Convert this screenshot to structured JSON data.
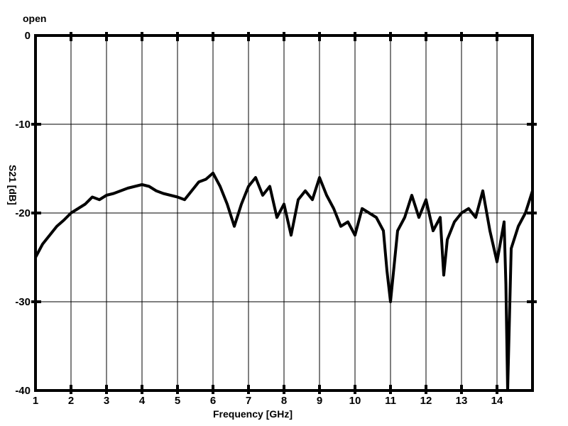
{
  "chart_data": {
    "type": "line",
    "title": "open",
    "xlabel": "Frequency [GHz]",
    "ylabel": "S21 [dB]",
    "xlim": [
      1,
      15
    ],
    "ylim": [
      -40,
      0
    ],
    "xticks": [
      1,
      2,
      3,
      4,
      5,
      6,
      7,
      8,
      9,
      10,
      11,
      12,
      13,
      14
    ],
    "yticks": [
      0,
      -10,
      -20,
      -30,
      -40
    ],
    "grid": true,
    "series": [
      {
        "x": [
          1.0,
          1.2,
          1.4,
          1.6,
          1.8,
          2.0,
          2.2,
          2.4,
          2.6,
          2.8,
          3.0,
          3.2,
          3.4,
          3.6,
          3.8,
          4.0,
          4.2,
          4.4,
          4.6,
          4.8,
          5.0,
          5.2,
          5.4,
          5.6,
          5.8,
          6.0,
          6.2,
          6.4,
          6.6,
          6.8,
          7.0,
          7.2,
          7.4,
          7.6,
          7.8,
          8.0,
          8.2,
          8.4,
          8.6,
          8.8,
          9.0,
          9.2,
          9.4,
          9.6,
          9.8,
          10.0,
          10.2,
          10.4,
          10.6,
          10.8,
          10.9,
          11.0,
          11.2,
          11.4,
          11.6,
          11.8,
          12.0,
          12.2,
          12.4,
          12.5,
          12.6,
          12.8,
          13.0,
          13.2,
          13.4,
          13.6,
          13.8,
          14.0,
          14.2,
          14.25,
          14.3,
          14.4,
          14.6,
          14.8,
          15.0
        ],
        "y": [
          -25,
          -23.5,
          -22.5,
          -21.5,
          -20.8,
          -20,
          -19.5,
          -19,
          -18.2,
          -18.5,
          -18,
          -17.8,
          -17.5,
          -17.2,
          -17,
          -16.8,
          -17,
          -17.5,
          -17.8,
          -18,
          -18.2,
          -18.5,
          -17.5,
          -16.5,
          -16.2,
          -15.5,
          -17,
          -19,
          -21.5,
          -19,
          -17,
          -16,
          -18,
          -17,
          -20.5,
          -19,
          -22.5,
          -18.5,
          -17.5,
          -18.5,
          -16,
          -18,
          -19.5,
          -21.5,
          -21,
          -22.5,
          -19.5,
          -20,
          -20.5,
          -22,
          -26.5,
          -30,
          -22,
          -20.5,
          -18,
          -20.5,
          -18.5,
          -22,
          -20.5,
          -27,
          -23,
          -21,
          -20,
          -19.5,
          -20.5,
          -17.5,
          -22,
          -25.5,
          -21,
          -28,
          -40,
          -24,
          -21.5,
          -20,
          -17.5
        ]
      }
    ]
  }
}
